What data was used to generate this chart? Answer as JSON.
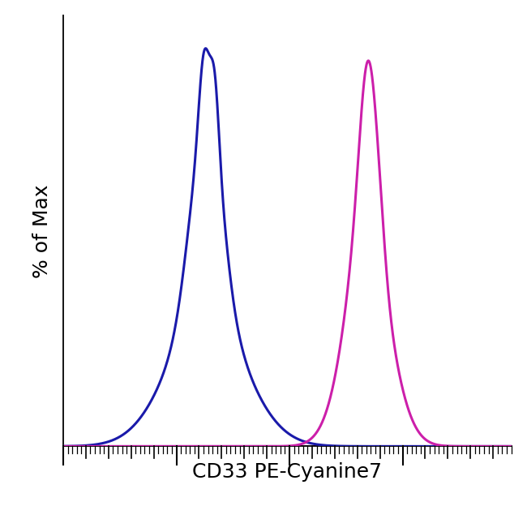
{
  "title": "",
  "xlabel": "CD33 PE-Cyanine7",
  "ylabel": "% of Max",
  "xlabel_fontsize": 18,
  "ylabel_fontsize": 18,
  "background_color": "#ffffff",
  "blue_color": "#1a1aaa",
  "magenta_color": "#cc1faa",
  "xlim": [
    0.0,
    1.0
  ],
  "ylim": [
    0,
    1.05
  ],
  "linewidth": 2.2,
  "figsize": [
    6.5,
    6.4
  ],
  "dpi": 100
}
